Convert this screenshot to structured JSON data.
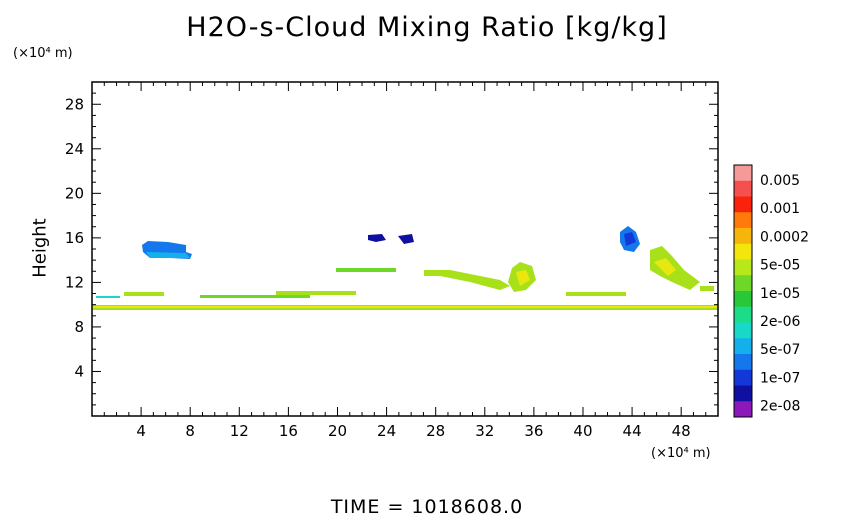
{
  "chart_data": {
    "type": "heatmap",
    "title": "H2O-s-Cloud Mixing Ratio [kg/kg]",
    "time_label": "TIME = 1018608.0",
    "xlabel": "",
    "ylabel": "Height",
    "x_unit": "(×10⁴ m)",
    "y_unit": "(×10⁴ m)",
    "xlim": [
      0,
      51
    ],
    "ylim": [
      0,
      30
    ],
    "x_ticks": [
      4,
      8,
      12,
      16,
      20,
      24,
      28,
      32,
      36,
      40,
      44,
      48
    ],
    "y_ticks": [
      4,
      8,
      12,
      16,
      20,
      24,
      28
    ],
    "grid": false,
    "legend_position": "right",
    "colorbar": {
      "labels": [
        "0.005",
        "0.001",
        "0.0002",
        "5e-05",
        "1e-05",
        "2e-06",
        "5e-07",
        "1e-07",
        "2e-08"
      ],
      "colors": [
        "#f59a98",
        "#f45050",
        "#f8230a",
        "#ff7a0a",
        "#f5b50a",
        "#f2e60c",
        "#b6e81a",
        "#6ed828",
        "#28c83a",
        "#1cdc8a",
        "#18d8c8",
        "#14b0ec",
        "#1478ec",
        "#1438d8",
        "#1010a0",
        "#8c18b8"
      ]
    },
    "cloud_features": [
      {
        "x": [
          4,
          8
        ],
        "y": [
          14.5,
          15.5
        ],
        "level": "5e-07",
        "note": "upper cloud"
      },
      {
        "x": [
          0,
          51
        ],
        "y": [
          9.6,
          10.1
        ],
        "level": "5e-05",
        "note": "continuous layer"
      },
      {
        "x": [
          22,
          26
        ],
        "y": [
          15.5,
          16.5
        ],
        "level": "1e-07"
      },
      {
        "x": [
          43,
          44
        ],
        "y": [
          15,
          17
        ],
        "level": "5e-07"
      },
      {
        "x": [
          27,
          36
        ],
        "y": [
          11,
          13.5
        ],
        "level": "5e-05"
      },
      {
        "x": [
          45,
          50
        ],
        "y": [
          11,
          14.5
        ],
        "level": "5e-05"
      }
    ]
  }
}
